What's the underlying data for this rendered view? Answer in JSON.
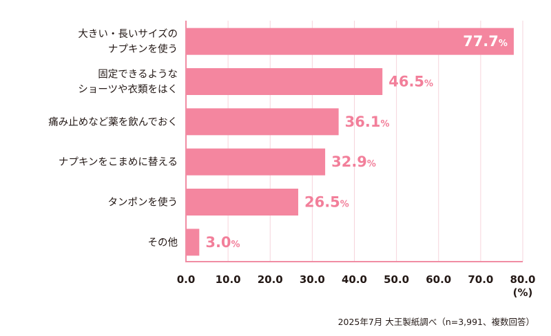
{
  "chart_data": {
    "type": "bar",
    "orientation": "horizontal",
    "categories": [
      [
        "大きい・長いサイズの",
        "ナプキンを使う"
      ],
      [
        "固定できるような",
        "ショーツや衣類をはく"
      ],
      [
        "痛み止めなど薬を飲んでおく"
      ],
      [
        "ナプキンをこまめに替える"
      ],
      [
        "タンポンを使う"
      ],
      [
        "その他"
      ]
    ],
    "values": [
      77.7,
      46.5,
      36.1,
      32.9,
      26.5,
      3.0
    ],
    "value_labels": [
      "77.7",
      "46.5",
      "36.1",
      "32.9",
      "26.5",
      "3.0"
    ],
    "value_unit": "%",
    "xlim": [
      0,
      80
    ],
    "xticks": [
      "0.0",
      "10.0",
      "20.0",
      "30.0",
      "40.0",
      "50.0",
      "60.0",
      "70.0",
      "80.0"
    ],
    "xlabel": "(%)",
    "grid": "vertical",
    "colors": {
      "bar": "#f4869f",
      "label": "#f27f9a",
      "grid": "#f6d3db",
      "axis": "#f08ca3"
    }
  },
  "footnote": "2025年7月 大王製紙調べ（n=3,991、複数回答）"
}
